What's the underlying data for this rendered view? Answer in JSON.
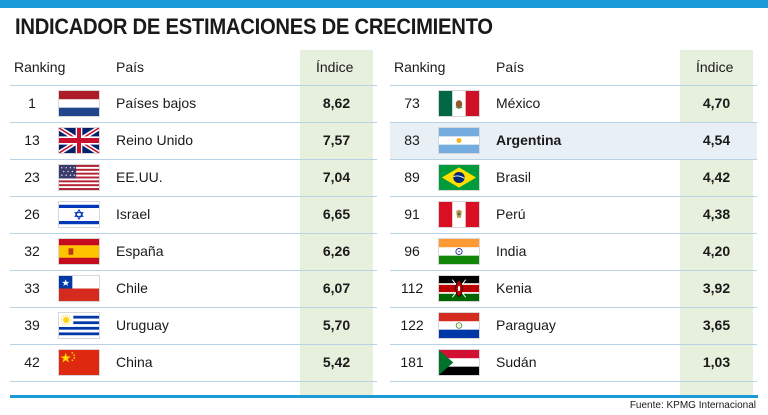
{
  "title": "INDICADOR DE ESTIMACIONES DE CRECIMIENTO",
  "headers": {
    "rank": "Ranking",
    "country": "País",
    "index": "Índice"
  },
  "left_rows": [
    {
      "rank": "1",
      "country": "Países bajos",
      "index": "8,62",
      "flag": "netherlands-flag-icon"
    },
    {
      "rank": "13",
      "country": "Reino Unido",
      "index": "7,57",
      "flag": "uk-flag-icon"
    },
    {
      "rank": "23",
      "country": "EE.UU.",
      "index": "7,04",
      "flag": "usa-flag-icon"
    },
    {
      "rank": "26",
      "country": "Israel",
      "index": "6,65",
      "flag": "israel-flag-icon"
    },
    {
      "rank": "32",
      "country": "España",
      "index": "6,26",
      "flag": "spain-flag-icon"
    },
    {
      "rank": "33",
      "country": "Chile",
      "index": "6,07",
      "flag": "chile-flag-icon"
    },
    {
      "rank": "39",
      "country": "Uruguay",
      "index": "5,70",
      "flag": "uruguay-flag-icon"
    },
    {
      "rank": "42",
      "country": "China",
      "index": "5,42",
      "flag": "china-flag-icon"
    }
  ],
  "right_rows": [
    {
      "rank": "73",
      "country": "México",
      "index": "4,70",
      "flag": "mexico-flag-icon"
    },
    {
      "rank": "83",
      "country": "Argentina",
      "index": "4,54",
      "flag": "argentina-flag-icon"
    },
    {
      "rank": "89",
      "country": "Brasil",
      "index": "4,42",
      "flag": "brazil-flag-icon"
    },
    {
      "rank": "91",
      "country": "Perú",
      "index": "4,38",
      "flag": "peru-flag-icon"
    },
    {
      "rank": "96",
      "country": "India",
      "index": "4,20",
      "flag": "india-flag-icon"
    },
    {
      "rank": "112",
      "country": "Kenia",
      "index": "3,92",
      "flag": "kenya-flag-icon"
    },
    {
      "rank": "122",
      "country": "Paraguay",
      "index": "3,65",
      "flag": "paraguay-flag-icon"
    },
    {
      "rank": "181",
      "country": "Sudán",
      "index": "1,03",
      "flag": "sudan-flag-icon"
    }
  ],
  "highlighted_country": "Argentina",
  "source": "Fuente: KPMG Internacional",
  "colors": {
    "accent": "#1a9bd7",
    "index_column": "#e6f0dd",
    "highlight_row": "#e9f0f5"
  }
}
